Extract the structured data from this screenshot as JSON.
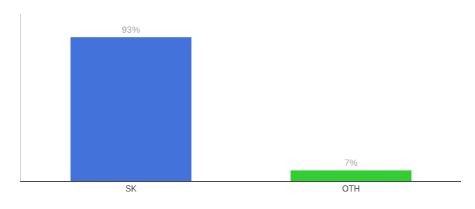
{
  "chart_data": {
    "type": "bar",
    "categories": [
      "SK",
      "OTH"
    ],
    "values": [
      93,
      7
    ],
    "value_labels": [
      "93%",
      "7%"
    ],
    "colors": [
      "#4472db",
      "#33cc33"
    ],
    "ylim": [
      0,
      108
    ],
    "data_labels": true,
    "tick_labels": "x",
    "grid": false
  }
}
